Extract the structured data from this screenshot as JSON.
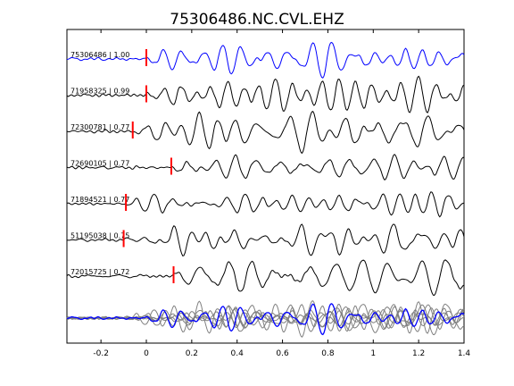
{
  "chart_data": {
    "type": "line",
    "title": "75306486.NC.CVL.EHZ",
    "xlabel": "",
    "ylabel": "",
    "xlim": [
      -0.35,
      1.4
    ],
    "x_ticks": [
      "-0.2",
      "0",
      "0.2",
      "0.4",
      "0.6",
      "0.8",
      "1",
      "1.2",
      "1.4"
    ],
    "x_tick_values": [
      -0.2,
      0,
      0.2,
      0.4,
      0.6,
      0.8,
      1.0,
      1.2,
      1.4
    ],
    "grid": false,
    "legend": "none",
    "series": [
      {
        "name": "75306486 | 1.00",
        "pick_time": 0.0,
        "color": "#0000ff"
      },
      {
        "name": "71958325 | 0.99",
        "pick_time": 0.0,
        "color": "#000000"
      },
      {
        "name": "72300781 | 0.77",
        "pick_time": -0.06,
        "color": "#000000"
      },
      {
        "name": "72690105 | 0.77",
        "pick_time": 0.11,
        "color": "#000000"
      },
      {
        "name": "71894521 | 0.77",
        "pick_time": -0.09,
        "color": "#000000"
      },
      {
        "name": "51195038 | 0.75",
        "pick_time": -0.1,
        "color": "#000000"
      },
      {
        "name": "72015725 | 0.72",
        "pick_time": 0.12,
        "color": "#000000"
      }
    ],
    "stack_colors": {
      "others": "#808080",
      "reference": "#0000ff"
    },
    "pick_color": "#ff0000"
  }
}
